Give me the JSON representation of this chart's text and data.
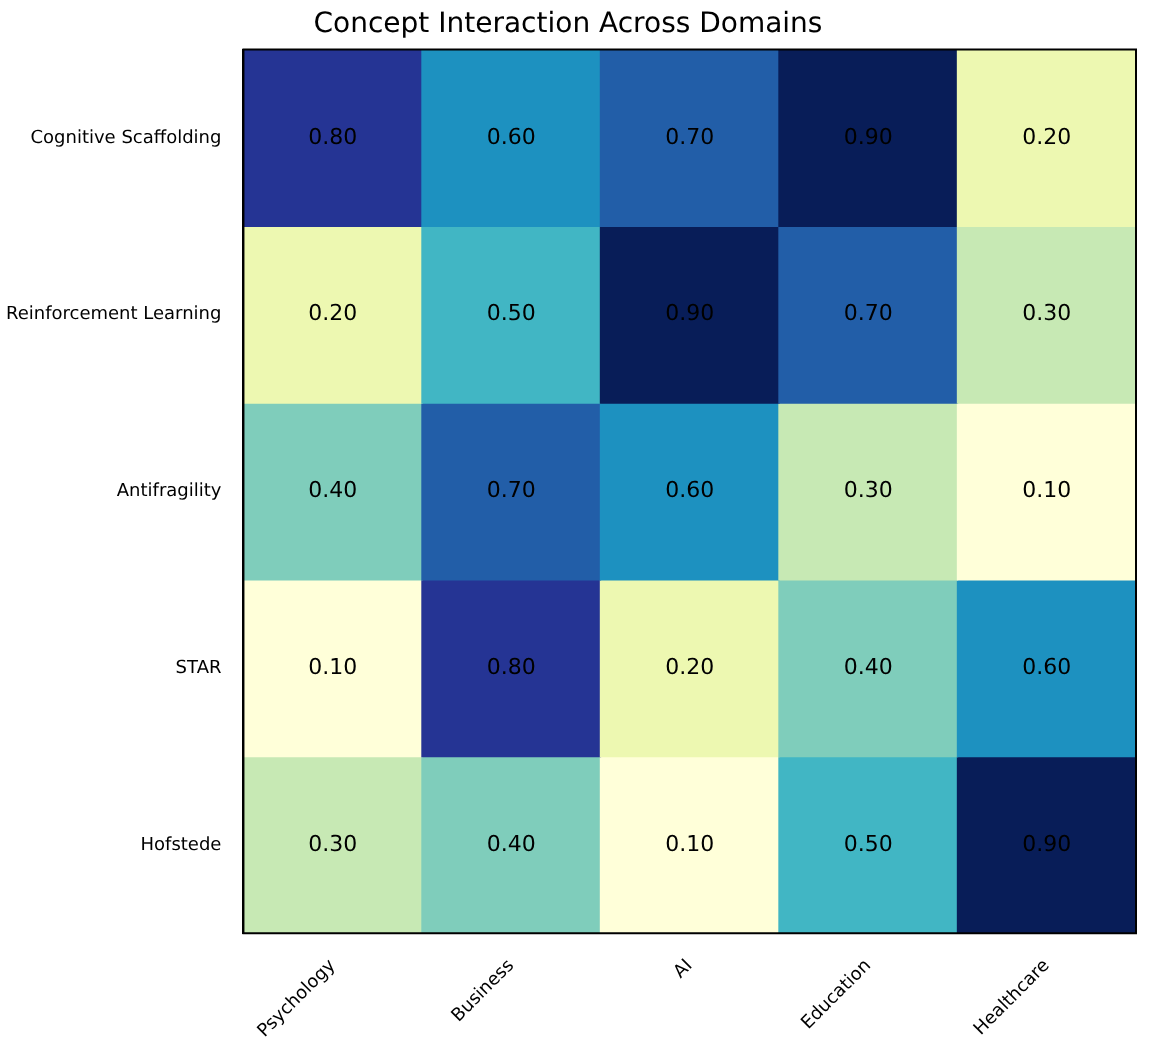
{
  "chart_data": {
    "type": "heatmap",
    "title": "Concept Interaction Across Domains",
    "categories": [
      "Psychology",
      "Business",
      "AI",
      "Education",
      "Healthcare"
    ],
    "y_categories": [
      "Cognitive Scaffolding",
      "Reinforcement Learning",
      "Antifragility",
      "STAR",
      "Hofstede"
    ],
    "cells": [
      [
        0.8,
        0.6,
        0.7,
        0.9,
        0.2
      ],
      [
        0.2,
        0.5,
        0.9,
        0.7,
        0.3
      ],
      [
        0.4,
        0.7,
        0.6,
        0.3,
        0.1
      ],
      [
        0.1,
        0.8,
        0.2,
        0.4,
        0.6
      ],
      [
        0.3,
        0.4,
        0.1,
        0.5,
        0.9
      ]
    ],
    "cell_labels": [
      [
        "0.80",
        "0.60",
        "0.70",
        "0.90",
        "0.20"
      ],
      [
        "0.20",
        "0.50",
        "0.90",
        "0.70",
        "0.30"
      ],
      [
        "0.40",
        "0.70",
        "0.60",
        "0.30",
        "0.10"
      ],
      [
        "0.10",
        "0.80",
        "0.20",
        "0.40",
        "0.60"
      ],
      [
        "0.30",
        "0.40",
        "0.10",
        "0.50",
        "0.90"
      ]
    ]
  }
}
